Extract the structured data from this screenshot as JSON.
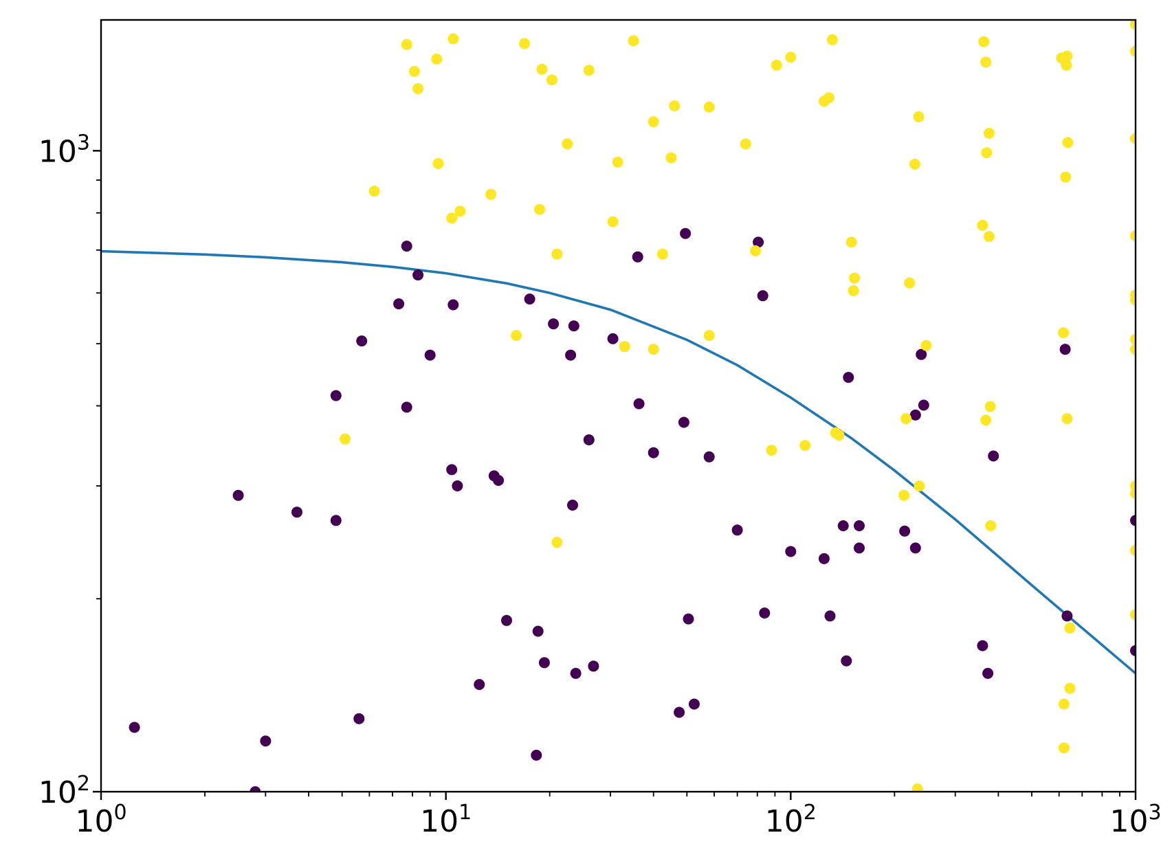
{
  "chart_data": {
    "type": "scatter",
    "title": "",
    "xlabel": "",
    "ylabel": "",
    "xscale": "log",
    "yscale": "log",
    "xlim": [
      1,
      1000
    ],
    "ylim": [
      100,
      1600
    ],
    "x_ticks": [
      {
        "base": "10",
        "exp": "0",
        "value": 1
      },
      {
        "base": "10",
        "exp": "1",
        "value": 10
      },
      {
        "base": "10",
        "exp": "2",
        "value": 100
      },
      {
        "base": "10",
        "exp": "3",
        "value": 1000
      }
    ],
    "y_ticks": [
      {
        "base": "10",
        "exp": "2",
        "value": 100
      },
      {
        "base": "10",
        "exp": "3",
        "value": 1000
      }
    ],
    "grid": false,
    "legend": "none",
    "colors": {
      "class_0": "#440154",
      "class_1": "#fde725",
      "curve": "#1f77b4"
    },
    "curve": {
      "x": [
        1,
        2,
        3,
        5,
        7,
        10,
        15,
        20,
        30,
        50,
        70,
        100,
        150,
        200,
        300,
        500,
        700,
        1000
      ],
      "y": [
        697,
        689,
        682,
        670,
        659,
        644,
        621,
        600,
        565,
        507,
        463,
        412,
        356,
        317,
        266,
        210,
        180,
        153
      ]
    },
    "series": [
      {
        "class": 0,
        "points": [
          [
            7.7,
            710
          ],
          [
            8.3,
            640
          ],
          [
            7.3,
            577
          ],
          [
            10.5,
            575
          ],
          [
            5.7,
            505
          ],
          [
            9,
            480
          ],
          [
            4.8,
            415
          ],
          [
            7.7,
            398
          ],
          [
            2.5,
            290
          ],
          [
            3.7,
            273
          ],
          [
            4.8,
            265
          ],
          [
            10.4,
            318
          ],
          [
            10.8,
            300
          ],
          [
            13.8,
            311
          ],
          [
            14.2,
            306
          ],
          [
            17.5,
            587
          ],
          [
            20.5,
            537
          ],
          [
            23.5,
            533
          ],
          [
            23,
            480
          ],
          [
            26,
            354
          ],
          [
            23.3,
            280
          ],
          [
            30.5,
            509
          ],
          [
            36,
            683
          ],
          [
            36.3,
            403
          ],
          [
            40,
            338
          ],
          [
            49.5,
            743
          ],
          [
            49,
            377
          ],
          [
            58,
            333
          ],
          [
            1.25,
            126
          ],
          [
            2.8,
            100
          ],
          [
            3,
            120
          ],
          [
            5.6,
            130
          ],
          [
            12.5,
            147
          ],
          [
            15,
            185
          ],
          [
            18.5,
            178
          ],
          [
            19.3,
            159
          ],
          [
            23.8,
            153
          ],
          [
            26.8,
            157
          ],
          [
            18.3,
            114
          ],
          [
            47.5,
            133
          ],
          [
            52.5,
            137
          ],
          [
            50.5,
            186
          ],
          [
            70,
            256
          ],
          [
            80.5,
            720
          ],
          [
            83,
            594
          ],
          [
            84,
            190
          ],
          [
            100,
            237
          ],
          [
            125,
            231
          ],
          [
            130,
            188
          ],
          [
            142,
            260
          ],
          [
            145,
            160
          ],
          [
            147,
            443
          ],
          [
            158,
            260
          ],
          [
            158,
            240
          ],
          [
            214,
            255
          ],
          [
            230,
            387
          ],
          [
            230,
            240
          ],
          [
            239,
            481
          ],
          [
            243,
            401
          ],
          [
            360,
            169
          ],
          [
            373,
            153
          ],
          [
            387,
            334
          ],
          [
            625,
            490
          ],
          [
            633,
            188
          ],
          [
            1000,
            265
          ],
          [
            1000,
            166
          ]
        ]
      },
      {
        "class": 1,
        "points": [
          [
            7.7,
            1465
          ],
          [
            8.1,
            1330
          ],
          [
            8.3,
            1250
          ],
          [
            9.4,
            1390
          ],
          [
            9.5,
            955
          ],
          [
            10.5,
            1495
          ],
          [
            6.2,
            865
          ],
          [
            10.4,
            785
          ],
          [
            11,
            805
          ],
          [
            13.5,
            855
          ],
          [
            16.9,
            1470
          ],
          [
            19,
            1340
          ],
          [
            20.3,
            1290
          ],
          [
            18.7,
            810
          ],
          [
            21,
            690
          ],
          [
            22.5,
            1025
          ],
          [
            26,
            1335
          ],
          [
            31.5,
            960
          ],
          [
            30.5,
            775
          ],
          [
            35,
            1485
          ],
          [
            40,
            1110
          ],
          [
            46,
            1175
          ],
          [
            45,
            975
          ],
          [
            58,
            1170
          ],
          [
            74,
            1025
          ],
          [
            91,
            1360
          ],
          [
            100,
            1400
          ],
          [
            125,
            1195
          ],
          [
            129,
            1210
          ],
          [
            132,
            1490
          ],
          [
            150,
            720
          ],
          [
            153,
            633
          ],
          [
            152,
            605
          ],
          [
            42.5,
            690
          ],
          [
            79,
            698
          ],
          [
            33,
            495
          ],
          [
            40,
            490
          ],
          [
            58,
            515
          ],
          [
            16,
            515
          ],
          [
            5.1,
            355
          ],
          [
            21,
            245
          ],
          [
            88,
            341
          ],
          [
            110,
            347
          ],
          [
            135,
            363
          ],
          [
            138,
            360
          ],
          [
            221,
            622
          ],
          [
            216,
            382
          ],
          [
            213,
            290
          ],
          [
            247,
            497
          ],
          [
            235,
            1130
          ],
          [
            229,
            953
          ],
          [
            236,
            300
          ],
          [
            233,
            101
          ],
          [
            360,
            765
          ],
          [
            376,
            735
          ],
          [
            368,
            380
          ],
          [
            379,
            399
          ],
          [
            380,
            260
          ],
          [
            363,
            1480
          ],
          [
            368,
            1375
          ],
          [
            376,
            1065
          ],
          [
            370,
            993
          ],
          [
            610,
            1395
          ],
          [
            633,
            1405
          ],
          [
            630,
            1360
          ],
          [
            636,
            1030
          ],
          [
            627,
            910
          ],
          [
            633,
            382
          ],
          [
            618,
            520
          ],
          [
            645,
            180
          ],
          [
            645,
            145
          ],
          [
            620,
            137
          ],
          [
            620,
            117
          ],
          [
            1000,
            1575
          ],
          [
            1000,
            1430
          ],
          [
            1000,
            1045
          ],
          [
            1000,
            737
          ],
          [
            1000,
            596
          ],
          [
            1000,
            585
          ],
          [
            1000,
            508
          ],
          [
            1000,
            490
          ],
          [
            1000,
            300
          ],
          [
            1000,
            292
          ],
          [
            1000,
            238
          ],
          [
            1000,
            189
          ]
        ]
      }
    ]
  }
}
